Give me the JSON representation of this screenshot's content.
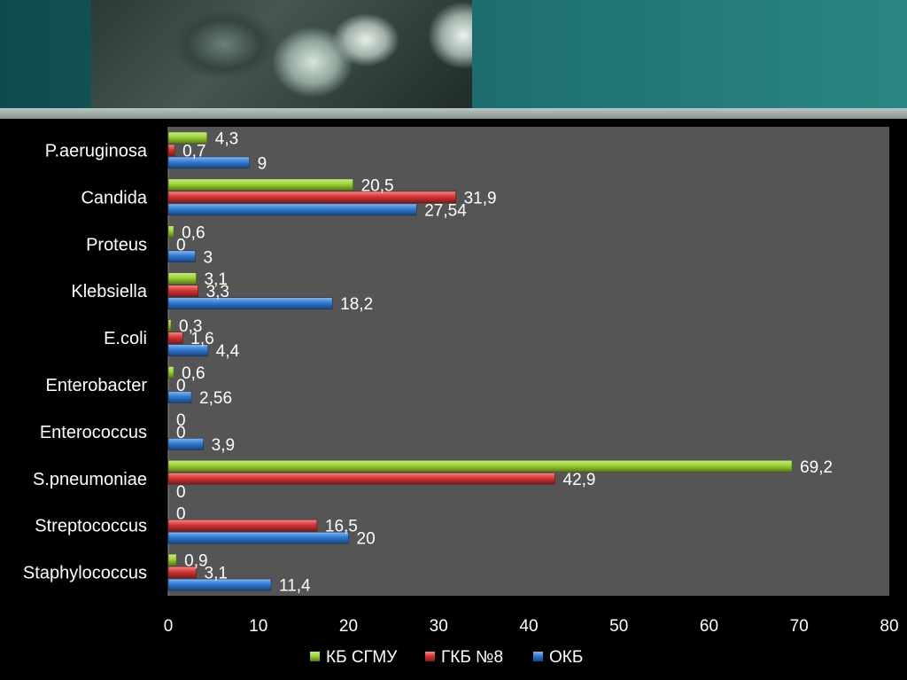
{
  "chart_data": {
    "type": "bar",
    "orientation": "horizontal",
    "categories": [
      "P.aeruginosa",
      "Candida",
      "Proteus",
      "Klebsiella",
      "E.coli",
      "Enterobacter",
      "Enterococcus",
      "S.pneumoniae",
      "Streptococcus",
      "Staphylococcus"
    ],
    "series": [
      {
        "name": "КБ СГМУ",
        "color": "#9bd433",
        "values": [
          4.3,
          20.5,
          0.6,
          3.1,
          0.3,
          0.6,
          0,
          69.2,
          0,
          0.9
        ],
        "labels": [
          "4,3",
          "20,5",
          "0,6",
          "3,1",
          "0,3",
          "0,6",
          "0",
          "69,2",
          "0",
          "0,9"
        ]
      },
      {
        "name": "ГКБ №8",
        "color": "#d93434",
        "values": [
          0.7,
          31.9,
          0,
          3.3,
          1.6,
          0,
          0,
          42.9,
          16.5,
          3.1
        ],
        "labels": [
          "0,7",
          "31,9",
          "0",
          "3,3",
          "1,6",
          "0",
          "0",
          "42,9",
          "16,5",
          "3,1"
        ]
      },
      {
        "name": "ОКБ",
        "color": "#2f7bd6",
        "values": [
          9,
          27.54,
          3,
          18.2,
          4.4,
          2.56,
          3.9,
          0,
          20,
          11.4
        ],
        "labels": [
          "9",
          "27,54",
          "3",
          "18,2",
          "4,4",
          "2,56",
          "3,9",
          "0",
          "20",
          "11,4"
        ]
      }
    ],
    "xlim": [
      0,
      80
    ],
    "xticks": [
      "0",
      "10",
      "20",
      "30",
      "40",
      "50",
      "60",
      "70",
      "80"
    ],
    "legend": "bottom",
    "plot_background": "#555555",
    "grid": false
  }
}
